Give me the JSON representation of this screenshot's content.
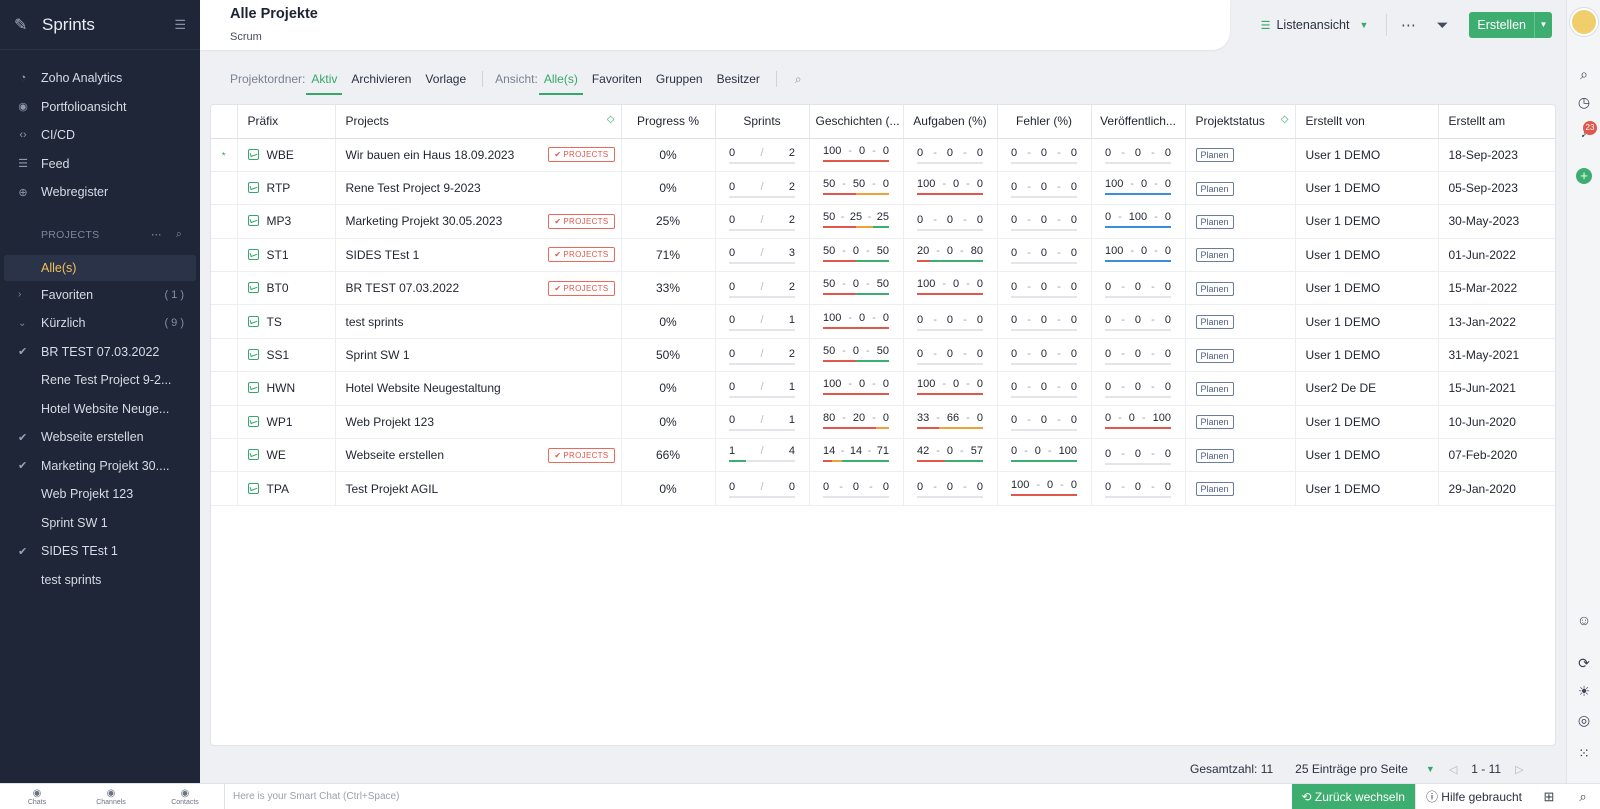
{
  "app": {
    "name": "Sprints",
    "brand_color": "#37a86b"
  },
  "sidebar": {
    "nav": [
      {
        "label": "Zoho Analytics",
        "icon": "analytics-icon"
      },
      {
        "label": "Portfolioansicht",
        "icon": "eye-icon"
      },
      {
        "label": "CI/CD",
        "icon": "code-icon"
      },
      {
        "label": "Feed",
        "icon": "feed-icon"
      },
      {
        "label": "Webregister",
        "icon": "globe-icon"
      }
    ],
    "section_label": "PROJECTS",
    "active_item": "Alle(s)",
    "groups": [
      {
        "label": "Favoriten",
        "count": "( 1 )"
      },
      {
        "label": "Kürzlich",
        "count": "( 9 )"
      }
    ],
    "recent": [
      {
        "label": "BR TEST 07.03.2022",
        "mark": "check"
      },
      {
        "label": "Rene Test Project 9-2...",
        "mark": ""
      },
      {
        "label": "Hotel Website Neuge...",
        "mark": ""
      },
      {
        "label": "Webseite erstellen",
        "mark": "check"
      },
      {
        "label": "Marketing Projekt 30....",
        "mark": "check-multi"
      },
      {
        "label": "Web Projekt 123",
        "mark": ""
      },
      {
        "label": "Sprint SW 1",
        "mark": ""
      },
      {
        "label": "SIDES TEst 1",
        "mark": "check"
      },
      {
        "label": "test sprints",
        "mark": ""
      }
    ]
  },
  "header": {
    "title": "Alle Projekte",
    "subtitle": "Scrum",
    "view_label": "Listenansicht",
    "create_label": "Erstellen"
  },
  "filters": {
    "folder_label": "Projektordner:",
    "folder_tabs": [
      "Aktiv",
      "Archivieren",
      "Vorlage"
    ],
    "folder_active": "Aktiv",
    "view_label": "Ansicht:",
    "view_tabs": [
      "Alle(s)",
      "Favoriten",
      "Gruppen",
      "Besitzer"
    ],
    "view_active": "Alle(s)"
  },
  "table": {
    "columns": [
      "Präfix",
      "Projects",
      "Progress %",
      "Sprints",
      "Geschichten (...",
      "Aufgaben (%)",
      "Fehler (%)",
      "Veröffentlich...",
      "Projektstatus",
      "Erstellt von",
      "Erstellt am"
    ],
    "tag_label": "PROJECTS",
    "rows": [
      {
        "prefix": "WBE",
        "name": "Wir bauen ein Haus 18.09.2023",
        "tag": true,
        "progress": "0%",
        "sprints": [
          "0",
          "2"
        ],
        "stories": [
          "100",
          "0",
          "0"
        ],
        "tasks": [
          "0",
          "0",
          "0"
        ],
        "bugs": [
          "0",
          "0",
          "0"
        ],
        "releases": [
          "0",
          "0",
          "0"
        ],
        "status": "Planen",
        "created_by": "User 1 DEMO",
        "created_on": "18-Sep-2023",
        "starred": true
      },
      {
        "prefix": "RTP",
        "name": "Rene Test Project 9-2023",
        "tag": false,
        "progress": "0%",
        "sprints": [
          "0",
          "2"
        ],
        "stories": [
          "50",
          "50",
          "0"
        ],
        "tasks": [
          "100",
          "0",
          "0"
        ],
        "bugs": [
          "0",
          "0",
          "0"
        ],
        "releases": [
          "100",
          "0",
          "0"
        ],
        "status": "Planen",
        "created_by": "User 1 DEMO",
        "created_on": "05-Sep-2023"
      },
      {
        "prefix": "MP3",
        "name": "Marketing Projekt 30.05.2023",
        "tag": true,
        "progress": "25%",
        "sprints": [
          "0",
          "2"
        ],
        "stories": [
          "50",
          "25",
          "25"
        ],
        "tasks": [
          "0",
          "0",
          "0"
        ],
        "bugs": [
          "0",
          "0",
          "0"
        ],
        "releases": [
          "0",
          "100",
          "0"
        ],
        "status": "Planen",
        "created_by": "User 1 DEMO",
        "created_on": "30-May-2023"
      },
      {
        "prefix": "ST1",
        "name": "SIDES TEst 1",
        "tag": true,
        "progress": "71%",
        "sprints": [
          "0",
          "3"
        ],
        "stories": [
          "50",
          "0",
          "50"
        ],
        "tasks": [
          "20",
          "0",
          "80"
        ],
        "bugs": [
          "0",
          "0",
          "0"
        ],
        "releases": [
          "100",
          "0",
          "0"
        ],
        "status": "Planen",
        "created_by": "User 1 DEMO",
        "created_on": "01-Jun-2022"
      },
      {
        "prefix": "BT0",
        "name": "BR TEST 07.03.2022",
        "tag": true,
        "progress": "33%",
        "sprints": [
          "0",
          "2"
        ],
        "stories": [
          "50",
          "0",
          "50"
        ],
        "tasks": [
          "100",
          "0",
          "0"
        ],
        "bugs": [
          "0",
          "0",
          "0"
        ],
        "releases": [
          "0",
          "0",
          "0"
        ],
        "status": "Planen",
        "created_by": "User 1 DEMO",
        "created_on": "15-Mar-2022"
      },
      {
        "prefix": "TS",
        "name": "test sprints",
        "tag": false,
        "progress": "0%",
        "sprints": [
          "0",
          "1"
        ],
        "stories": [
          "100",
          "0",
          "0"
        ],
        "tasks": [
          "0",
          "0",
          "0"
        ],
        "bugs": [
          "0",
          "0",
          "0"
        ],
        "releases": [
          "0",
          "0",
          "0"
        ],
        "status": "Planen",
        "created_by": "User 1 DEMO",
        "created_on": "13-Jan-2022"
      },
      {
        "prefix": "SS1",
        "name": "Sprint SW 1",
        "tag": false,
        "progress": "50%",
        "sprints": [
          "0",
          "2"
        ],
        "stories": [
          "50",
          "0",
          "50"
        ],
        "tasks": [
          "0",
          "0",
          "0"
        ],
        "bugs": [
          "0",
          "0",
          "0"
        ],
        "releases": [
          "0",
          "0",
          "0"
        ],
        "status": "Planen",
        "created_by": "User 1 DEMO",
        "created_on": "31-May-2021"
      },
      {
        "prefix": "HWN",
        "name": "Hotel Website Neugestaltung",
        "tag": false,
        "progress": "0%",
        "sprints": [
          "0",
          "1"
        ],
        "stories": [
          "100",
          "0",
          "0"
        ],
        "tasks": [
          "100",
          "0",
          "0"
        ],
        "bugs": [
          "0",
          "0",
          "0"
        ],
        "releases": [
          "0",
          "0",
          "0"
        ],
        "status": "Planen",
        "created_by": "User2 De DE",
        "created_on": "15-Jun-2021"
      },
      {
        "prefix": "WP1",
        "name": "Web Projekt 123",
        "tag": false,
        "progress": "0%",
        "sprints": [
          "0",
          "1"
        ],
        "stories": [
          "80",
          "20",
          "0"
        ],
        "tasks": [
          "33",
          "66",
          "0"
        ],
        "bugs": [
          "0",
          "0",
          "0"
        ],
        "releases": [
          "0",
          "0",
          "100"
        ],
        "status": "Planen",
        "created_by": "User 1 DEMO",
        "created_on": "10-Jun-2020"
      },
      {
        "prefix": "WE",
        "name": "Webseite erstellen",
        "tag": true,
        "progress": "66%",
        "sprints": [
          "1",
          "4"
        ],
        "stories": [
          "14",
          "14",
          "71"
        ],
        "tasks": [
          "42",
          "0",
          "57"
        ],
        "bugs": [
          "0",
          "0",
          "100"
        ],
        "releases": [
          "0",
          "0",
          "0"
        ],
        "status": "Planen",
        "created_by": "User 1 DEMO",
        "created_on": "07-Feb-2020"
      },
      {
        "prefix": "TPA",
        "name": "Test Projekt AGIL",
        "tag": false,
        "progress": "0%",
        "sprints": [
          "0",
          "0"
        ],
        "stories": [
          "0",
          "0",
          "0"
        ],
        "tasks": [
          "0",
          "0",
          "0"
        ],
        "bugs": [
          "100",
          "0",
          "0"
        ],
        "releases": [
          "0",
          "0",
          "0"
        ],
        "status": "Planen",
        "created_by": "User 1 DEMO",
        "created_on": "29-Jan-2020"
      }
    ]
  },
  "pager": {
    "total": "Gesamtzahl: 11",
    "per_page": "25 Einträge pro Seite",
    "range": "1 - 11"
  },
  "rail": {
    "notification_count": "23"
  },
  "bottombar": {
    "tabs": [
      "Chats",
      "Channels",
      "Contacts"
    ],
    "chat_placeholder": "Here is your Smart Chat (Ctrl+Space)",
    "switch_label": "Zurück wechseln",
    "help_label": "Hilfe gebraucht"
  },
  "colors": {
    "red": "#e2574c",
    "orange": "#f0a23a",
    "green": "#3dae6f",
    "blue": "#3a8fdc"
  }
}
